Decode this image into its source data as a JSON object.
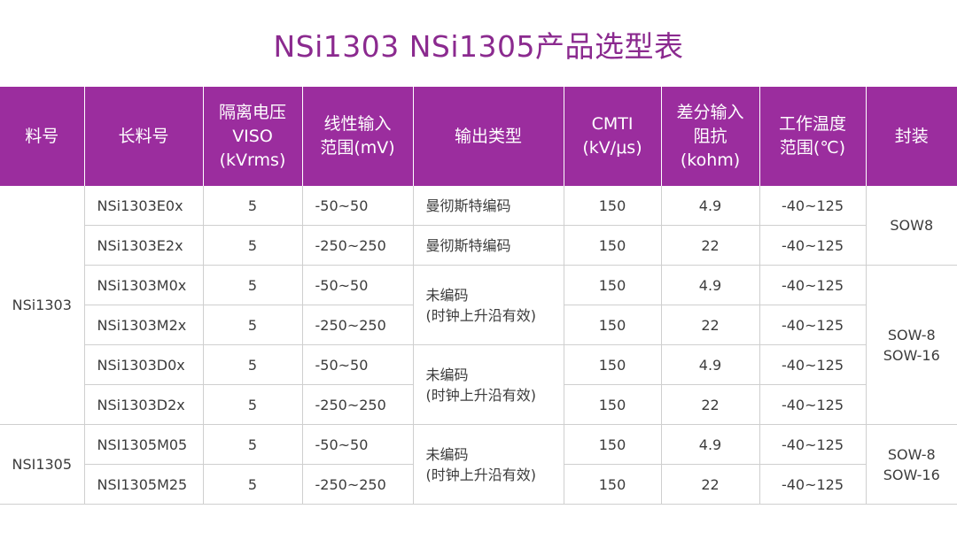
{
  "title": "NSi1303 NSi1305产品选型表",
  "headers": [
    [
      "料号"
    ],
    [
      "长料号"
    ],
    [
      "隔离电压",
      "VISO",
      "(kVrms)"
    ],
    [
      "线性输入",
      "范围(mV)"
    ],
    [
      "输出类型"
    ],
    [
      "CMTI",
      "(kV/μs)"
    ],
    [
      "差分输入",
      "阻抗",
      "(kohm)"
    ],
    [
      "工作温度",
      "范围(℃)"
    ],
    [
      "封装"
    ]
  ],
  "families": {
    "f1": "NSi1303",
    "f2": "NSI1305"
  },
  "rows": [
    {
      "part": "NSi1303E0x",
      "viso": "5",
      "range": "-50~50",
      "cmti": "150",
      "imp": "4.9",
      "temp": "-40~125"
    },
    {
      "part": "NSi1303E2x",
      "viso": "5",
      "range": "-250~250",
      "cmti": "150",
      "imp": "22",
      "temp": "-40~125"
    },
    {
      "part": "NSi1303M0x",
      "viso": "5",
      "range": "-50~50",
      "cmti": "150",
      "imp": "4.9",
      "temp": "-40~125"
    },
    {
      "part": "NSi1303M2x",
      "viso": "5",
      "range": "-250~250",
      "cmti": "150",
      "imp": "22",
      "temp": "-40~125"
    },
    {
      "part": "NSi1303D0x",
      "viso": "5",
      "range": "-50~50",
      "cmti": "150",
      "imp": "4.9",
      "temp": "-40~125"
    },
    {
      "part": "NSi1303D2x",
      "viso": "5",
      "range": "-250~250",
      "cmti": "150",
      "imp": "22",
      "temp": "-40~125"
    },
    {
      "part": "NSI1305M05",
      "viso": "5",
      "range": "-50~50",
      "cmti": "150",
      "imp": "4.9",
      "temp": "-40~125"
    },
    {
      "part": "NSI1305M25",
      "viso": "5",
      "range": "-250~250",
      "cmti": "150",
      "imp": "22",
      "temp": "-40~125"
    }
  ],
  "outputs": {
    "o1": "曼彻斯特编码",
    "o2": "曼彻斯特编码",
    "o3": [
      "未编码",
      "(时钟上升沿有效)"
    ],
    "o4": [
      "未编码",
      "(时钟上升沿有效)"
    ],
    "o5": [
      "未编码",
      "(时钟上升沿有效)"
    ]
  },
  "packages": {
    "p1": [
      "SOW8"
    ],
    "p2": [
      "SOW-8",
      "SOW-16"
    ],
    "p3": [
      "SOW-8",
      "SOW-16"
    ]
  }
}
